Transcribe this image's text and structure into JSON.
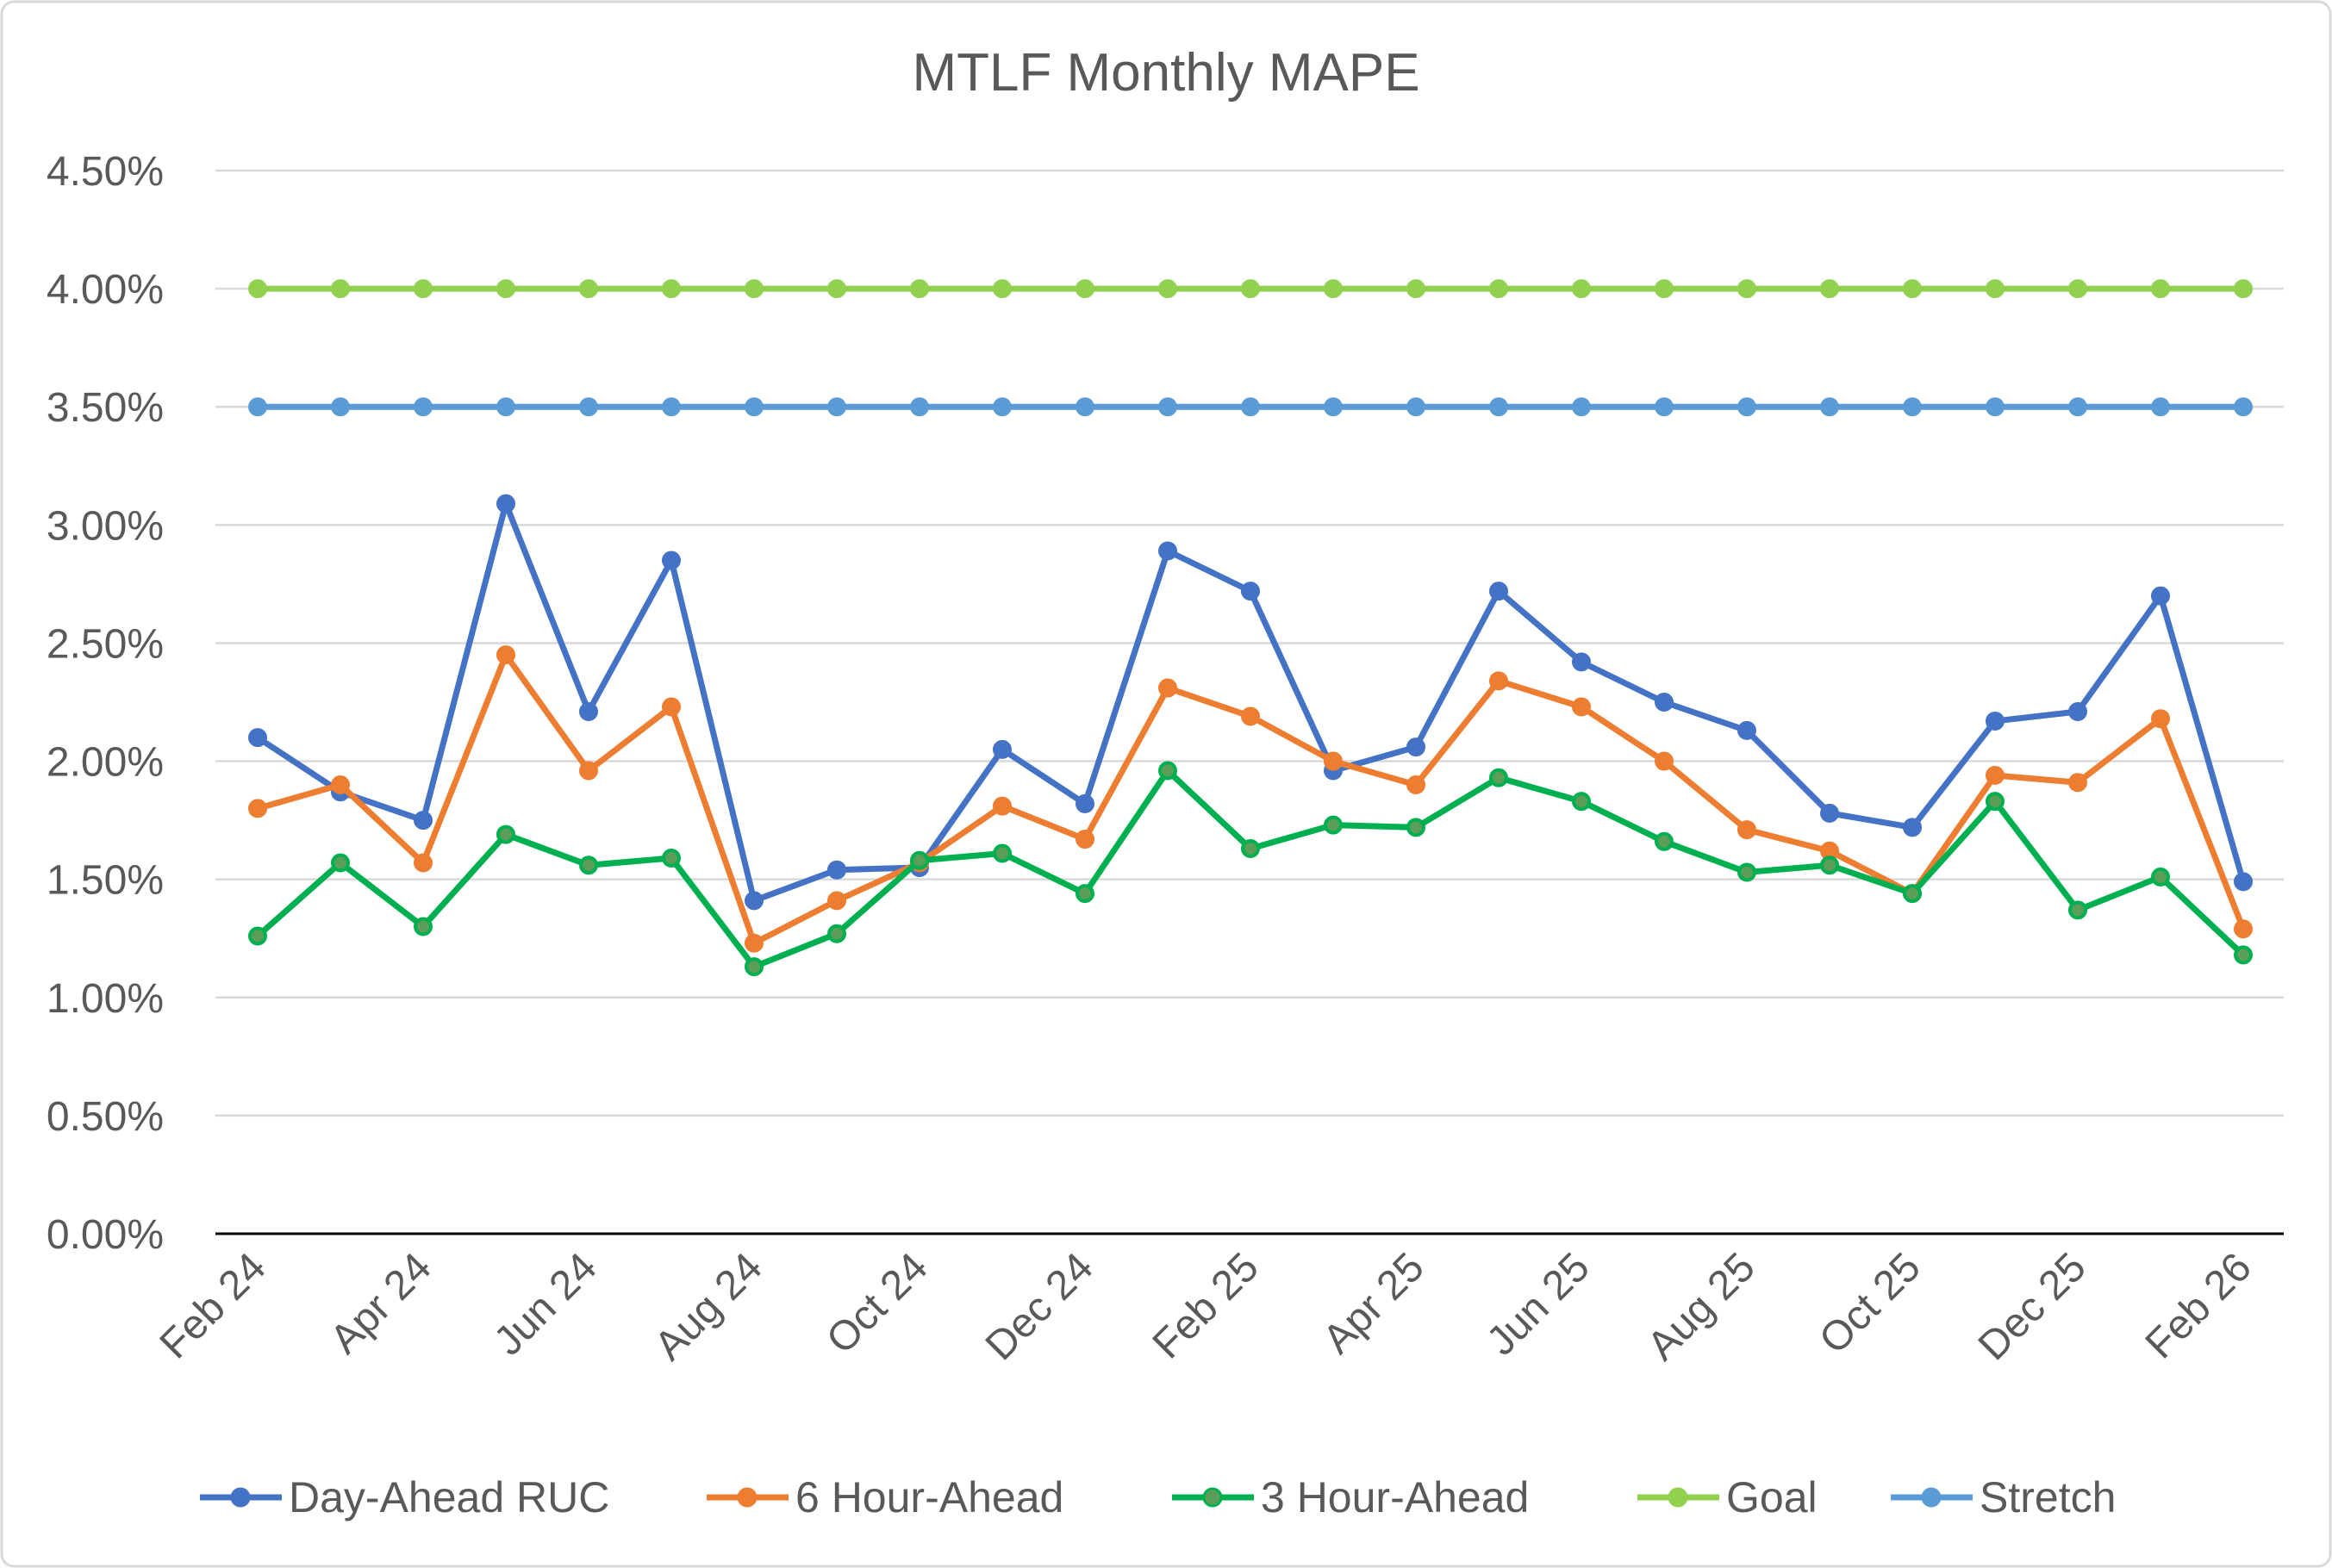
{
  "chart_data": {
    "type": "line",
    "title": "MTLF Monthly MAPE",
    "xlabel": "",
    "ylabel": "",
    "ylim": [
      0,
      4.5
    ],
    "y_ticks": [
      "0.00%",
      "0.50%",
      "1.00%",
      "1.50%",
      "2.00%",
      "2.50%",
      "3.00%",
      "3.50%",
      "4.00%",
      "4.50%"
    ],
    "grid": true,
    "legend_position": "bottom",
    "categories": [
      "Feb 24",
      "Mar 24",
      "Apr 24",
      "May 24",
      "Jun 24",
      "Jul 24",
      "Aug 24",
      "Sep 24",
      "Oct 24",
      "Nov 24",
      "Dec 24",
      "Jan 25",
      "Feb 25",
      "Mar 25",
      "Apr 25",
      "May 25",
      "Jun 25",
      "Jul 25",
      "Aug 25",
      "Sep 25",
      "Oct 25",
      "Nov 25",
      "Dec 25",
      "Jan 26",
      "Feb 26"
    ],
    "x_tick_labels": [
      "Feb 24",
      "Apr 24",
      "Jun 24",
      "Aug 24",
      "Oct 24",
      "Dec 24",
      "Feb 25",
      "Apr 25",
      "Jun 25",
      "Aug 25",
      "Oct 25",
      "Dec 25",
      "Feb 26"
    ],
    "series": [
      {
        "name": "Day-Ahead RUC",
        "color": "#4472C4",
        "values": [
          2.1,
          1.87,
          1.75,
          3.09,
          2.21,
          2.85,
          1.41,
          1.54,
          1.55,
          2.05,
          1.82,
          2.89,
          2.72,
          1.96,
          2.06,
          2.72,
          2.42,
          2.25,
          2.13,
          1.78,
          1.72,
          2.17,
          2.21,
          2.7,
          1.49
        ]
      },
      {
        "name": "6 Hour-Ahead",
        "color": "#ED7D31",
        "values": [
          1.8,
          1.9,
          1.57,
          2.45,
          1.96,
          2.23,
          1.23,
          1.41,
          1.57,
          1.81,
          1.67,
          2.31,
          2.19,
          2.0,
          1.9,
          2.34,
          2.23,
          2.0,
          1.71,
          1.62,
          1.44,
          1.94,
          1.91,
          2.18,
          1.29
        ]
      },
      {
        "name": "3 Hour-Ahead",
        "color": "#00B050",
        "values": [
          1.26,
          1.57,
          1.3,
          1.69,
          1.56,
          1.59,
          1.13,
          1.27,
          1.58,
          1.61,
          1.44,
          1.96,
          1.63,
          1.73,
          1.72,
          1.93,
          1.83,
          1.66,
          1.53,
          1.56,
          1.44,
          1.83,
          1.37,
          1.51,
          1.18
        ]
      },
      {
        "name": "Goal",
        "color": "#92D050",
        "values": [
          4,
          4,
          4,
          4,
          4,
          4,
          4,
          4,
          4,
          4,
          4,
          4,
          4,
          4,
          4,
          4,
          4,
          4,
          4,
          4,
          4,
          4,
          4,
          4,
          4
        ]
      },
      {
        "name": "Stretch",
        "color": "#5B9BD5",
        "values": [
          3.5,
          3.5,
          3.5,
          3.5,
          3.5,
          3.5,
          3.5,
          3.5,
          3.5,
          3.5,
          3.5,
          3.5,
          3.5,
          3.5,
          3.5,
          3.5,
          3.5,
          3.5,
          3.5,
          3.5,
          3.5,
          3.5,
          3.5,
          3.5,
          3.5
        ]
      }
    ]
  }
}
